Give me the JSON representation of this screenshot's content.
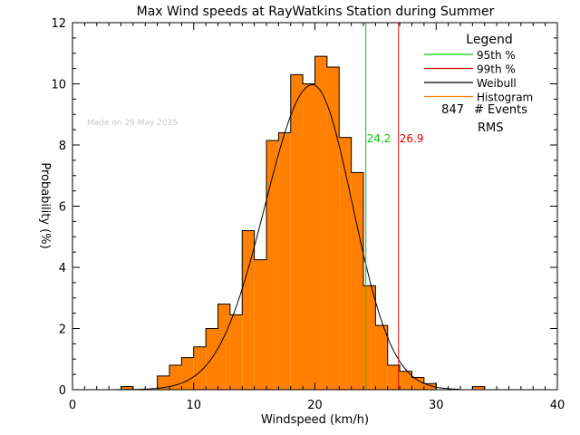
{
  "chart_data": {
    "type": "bar",
    "title": "Max Wind speeds at RayWatkins Station during Summer",
    "xlabel": "Windspeed (km/h)",
    "ylabel": "Probability (%)",
    "xlim": [
      0,
      40
    ],
    "ylim": [
      0,
      12
    ],
    "x_ticks": [
      "0",
      "10",
      "20",
      "30",
      "40"
    ],
    "y_ticks": [
      "0",
      "2",
      "4",
      "6",
      "8",
      "10",
      "12"
    ],
    "watermark": "Made on 29 May 2025",
    "bin_width": 1,
    "histogram": {
      "name": "Histogram",
      "bin_starts": [
        4,
        5,
        6,
        7,
        8,
        9,
        10,
        11,
        12,
        13,
        14,
        15,
        16,
        17,
        18,
        19,
        20,
        21,
        22,
        23,
        24,
        25,
        26,
        27,
        28,
        29,
        30,
        31,
        32,
        33
      ],
      "values": [
        0.1,
        0,
        0,
        0.45,
        0.8,
        1.05,
        1.4,
        2.0,
        2.8,
        2.45,
        5.2,
        4.25,
        8.15,
        8.4,
        10.3,
        10.0,
        10.9,
        10.55,
        8.25,
        7.1,
        3.4,
        2.1,
        0.8,
        0.6,
        0.4,
        0.2,
        0,
        0,
        0,
        0.1
      ]
    },
    "weibull": {
      "name": "Weibull",
      "peak_x": 19.8,
      "peak_y": 9.97,
      "sigma_left": 3.9,
      "sigma_right": 3.3
    },
    "percentiles": [
      {
        "name": "95th %",
        "value": 24.2,
        "label": "24.2",
        "color": "#00cc00"
      },
      {
        "name": "99th %",
        "value": 26.9,
        "label": "26.9",
        "color": "#dd0000"
      }
    ],
    "legend": {
      "title": "Legend",
      "placement": "top-right",
      "entries": [
        {
          "label": "95th %",
          "color": "#00cc00"
        },
        {
          "label": "99th %",
          "color": "#dd0000"
        },
        {
          "label": "Weibull",
          "color": "#000000"
        },
        {
          "label": "Histogram",
          "color": "#ff8000"
        }
      ],
      "events_count": "847",
      "events_label": "# Events",
      "rms_label": "RMS"
    },
    "colors": {
      "histogram_fill": "#ff8000",
      "histogram_edge": "#000000"
    }
  }
}
